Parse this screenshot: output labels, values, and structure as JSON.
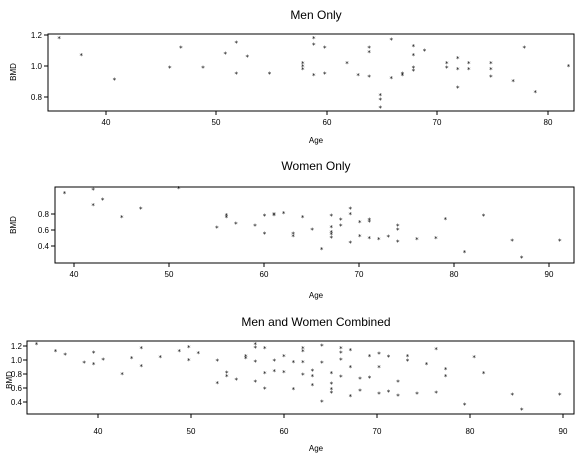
{
  "chart_data": [
    {
      "type": "scatter",
      "title": "Men Only",
      "xlabel": "Age",
      "ylabel": "BMD",
      "xlim": [
        35,
        82.5
      ],
      "ylim": [
        0.72,
        1.22
      ],
      "xticks": [
        "40",
        "50",
        "60",
        "70",
        "80"
      ],
      "yticks": [
        "0.8",
        "1.0",
        "1.2"
      ],
      "grid": false,
      "marker": "x",
      "points": [
        [
          36,
          1.19
        ],
        [
          38,
          1.08
        ],
        [
          41,
          0.92
        ],
        [
          46,
          1.0
        ],
        [
          47,
          1.13
        ],
        [
          49,
          1.0
        ],
        [
          51,
          1.09
        ],
        [
          52,
          1.16
        ],
        [
          52,
          0.96
        ],
        [
          53,
          1.07
        ],
        [
          55,
          0.96
        ],
        [
          58,
          1.03
        ],
        [
          58,
          1.01
        ],
        [
          58,
          0.99
        ],
        [
          59,
          1.19
        ],
        [
          59,
          1.15
        ],
        [
          59,
          0.95
        ],
        [
          60,
          1.13
        ],
        [
          60,
          0.96
        ],
        [
          62,
          1.03
        ],
        [
          63,
          0.95
        ],
        [
          64,
          1.13
        ],
        [
          64,
          1.1
        ],
        [
          64,
          0.94
        ],
        [
          65,
          0.82
        ],
        [
          65,
          0.79
        ],
        [
          65,
          0.74
        ],
        [
          66,
          1.18
        ],
        [
          66,
          0.93
        ],
        [
          67,
          0.96
        ],
        [
          67,
          0.95
        ],
        [
          68,
          1.14
        ],
        [
          68,
          1.08
        ],
        [
          68,
          1.0
        ],
        [
          68,
          0.98
        ],
        [
          69,
          1.11
        ],
        [
          71,
          1.03
        ],
        [
          71,
          1.0
        ],
        [
          72,
          1.06
        ],
        [
          72,
          0.99
        ],
        [
          72,
          0.87
        ],
        [
          73,
          1.03
        ],
        [
          73,
          0.99
        ],
        [
          75,
          1.03
        ],
        [
          75,
          0.99
        ],
        [
          75,
          0.94
        ],
        [
          77,
          0.91
        ],
        [
          78,
          1.13
        ],
        [
          79,
          0.84
        ],
        [
          82,
          1.01
        ]
      ]
    },
    {
      "type": "scatter",
      "title": "Women Only",
      "xlabel": "Age",
      "ylabel": "BMD",
      "xlim": [
        38,
        92.5
      ],
      "ylim": [
        0.2,
        1.14
      ],
      "xticks": [
        "40",
        "50",
        "60",
        "70",
        "80",
        "90"
      ],
      "yticks": [
        "0.4",
        "0.6",
        "0.8"
      ],
      "grid": false,
      "marker": "x",
      "points": [
        [
          39,
          1.06
        ],
        [
          42,
          1.1
        ],
        [
          42,
          0.91
        ],
        [
          43,
          0.98
        ],
        [
          45,
          0.76
        ],
        [
          47,
          0.87
        ],
        [
          51,
          1.12
        ],
        [
          55,
          0.63
        ],
        [
          56,
          0.79
        ],
        [
          56,
          0.76
        ],
        [
          57,
          0.68
        ],
        [
          59,
          0.66
        ],
        [
          60,
          0.78
        ],
        [
          60,
          0.56
        ],
        [
          61,
          0.8
        ],
        [
          61,
          0.79
        ],
        [
          62,
          0.81
        ],
        [
          63,
          0.56
        ],
        [
          63,
          0.53
        ],
        [
          64,
          0.76
        ],
        [
          65,
          0.61
        ],
        [
          66,
          0.37
        ],
        [
          67,
          0.78
        ],
        [
          67,
          0.64
        ],
        [
          67,
          0.58
        ],
        [
          67,
          0.55
        ],
        [
          67,
          0.51
        ],
        [
          68,
          0.73
        ],
        [
          68,
          0.66
        ],
        [
          69,
          0.87
        ],
        [
          69,
          0.8
        ],
        [
          69,
          0.45
        ],
        [
          70,
          0.7
        ],
        [
          70,
          0.53
        ],
        [
          71,
          0.73
        ],
        [
          71,
          0.71
        ],
        [
          71,
          0.5
        ],
        [
          72,
          0.49
        ],
        [
          73,
          0.52
        ],
        [
          74,
          0.66
        ],
        [
          74,
          0.61
        ],
        [
          74,
          0.46
        ],
        [
          76,
          0.49
        ],
        [
          78,
          0.5
        ],
        [
          79,
          0.74
        ],
        [
          81,
          0.33
        ],
        [
          83,
          0.78
        ],
        [
          86,
          0.47
        ],
        [
          87,
          0.26
        ],
        [
          91,
          0.47
        ]
      ]
    },
    {
      "type": "scatter",
      "title": "Men and Women Combined",
      "xlabel": "Age",
      "ylabel": "BMD",
      "xlim": [
        35,
        92.5
      ],
      "ylim": [
        0.2,
        1.25
      ],
      "xticks": [
        "40",
        "50",
        "60",
        "70",
        "80",
        "90"
      ],
      "yticks": [
        "0.4",
        "0.6",
        "0.8",
        "1.0",
        "1.2"
      ],
      "grid": false,
      "marker": "x",
      "points": [
        [
          36,
          1.2
        ],
        [
          38,
          1.1
        ],
        [
          39,
          1.05
        ],
        [
          41,
          0.93
        ],
        [
          42,
          1.08
        ],
        [
          42,
          0.91
        ],
        [
          43,
          0.98
        ],
        [
          45,
          0.77
        ],
        [
          46,
          1.0
        ],
        [
          47,
          1.14
        ],
        [
          47,
          0.88
        ],
        [
          49,
          1.01
        ],
        [
          51,
          1.1
        ],
        [
          52,
          1.16
        ],
        [
          52,
          0.97
        ],
        [
          53,
          1.07
        ],
        [
          55,
          0.64
        ],
        [
          55,
          0.96
        ],
        [
          56,
          0.79
        ],
        [
          56,
          0.74
        ],
        [
          57,
          0.69
        ],
        [
          58,
          1.03
        ],
        [
          58,
          1.0
        ],
        [
          59,
          1.2
        ],
        [
          59,
          1.15
        ],
        [
          59,
          0.95
        ],
        [
          59,
          0.66
        ],
        [
          60,
          1.14
        ],
        [
          60,
          0.78
        ],
        [
          60,
          0.56
        ],
        [
          61,
          0.96
        ],
        [
          61,
          0.81
        ],
        [
          62,
          1.03
        ],
        [
          62,
          0.8
        ],
        [
          63,
          0.55
        ],
        [
          63,
          0.94
        ],
        [
          64,
          1.14
        ],
        [
          64,
          1.1
        ],
        [
          64,
          0.94
        ],
        [
          64,
          0.76
        ],
        [
          65,
          0.82
        ],
        [
          65,
          0.74
        ],
        [
          65,
          0.61
        ],
        [
          66,
          1.18
        ],
        [
          66,
          0.37
        ],
        [
          66,
          0.93
        ],
        [
          67,
          0.78
        ],
        [
          67,
          0.63
        ],
        [
          67,
          0.55
        ],
        [
          67,
          0.5
        ],
        [
          68,
          1.14
        ],
        [
          68,
          1.08
        ],
        [
          68,
          0.98
        ],
        [
          68,
          0.73
        ],
        [
          69,
          1.11
        ],
        [
          69,
          0.87
        ],
        [
          69,
          0.45
        ],
        [
          70,
          0.7
        ],
        [
          70,
          0.53
        ],
        [
          71,
          1.03
        ],
        [
          71,
          0.72
        ],
        [
          72,
          1.06
        ],
        [
          72,
          0.87
        ],
        [
          72,
          0.49
        ],
        [
          73,
          1.02
        ],
        [
          73,
          0.52
        ],
        [
          74,
          0.66
        ],
        [
          74,
          0.46
        ],
        [
          75,
          1.03
        ],
        [
          75,
          0.96
        ],
        [
          76,
          0.49
        ],
        [
          77,
          0.91
        ],
        [
          78,
          1.13
        ],
        [
          78,
          0.5
        ],
        [
          79,
          0.84
        ],
        [
          79,
          0.74
        ],
        [
          81,
          0.33
        ],
        [
          82,
          1.01
        ],
        [
          83,
          0.78
        ],
        [
          86,
          0.47
        ],
        [
          87,
          0.26
        ],
        [
          91,
          0.47
        ]
      ]
    }
  ]
}
